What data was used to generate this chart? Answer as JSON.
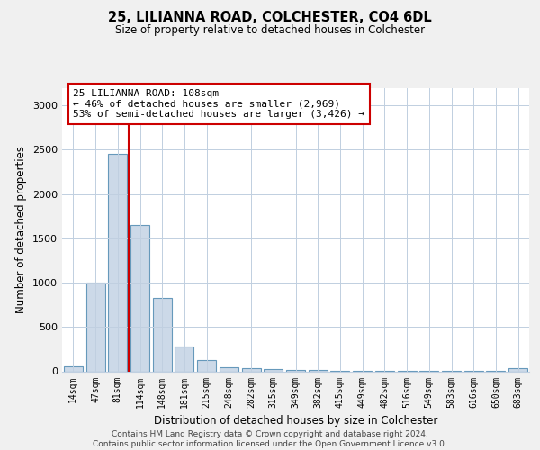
{
  "title1": "25, LILIANNA ROAD, COLCHESTER, CO4 6DL",
  "title2": "Size of property relative to detached houses in Colchester",
  "xlabel": "Distribution of detached houses by size in Colchester",
  "ylabel": "Number of detached properties",
  "bar_labels": [
    "14sqm",
    "47sqm",
    "81sqm",
    "114sqm",
    "148sqm",
    "181sqm",
    "215sqm",
    "248sqm",
    "282sqm",
    "315sqm",
    "349sqm",
    "382sqm",
    "415sqm",
    "449sqm",
    "482sqm",
    "516sqm",
    "549sqm",
    "583sqm",
    "616sqm",
    "650sqm",
    "683sqm"
  ],
  "bar_values": [
    55,
    1000,
    2450,
    1650,
    830,
    280,
    130,
    50,
    40,
    30,
    20,
    15,
    10,
    5,
    5,
    5,
    3,
    2,
    2,
    2,
    40
  ],
  "bar_color": "#ccd9e8",
  "bar_edgecolor": "#6699bb",
  "annotation_text": "25 LILIANNA ROAD: 108sqm\n← 46% of detached houses are smaller (2,969)\n53% of semi-detached houses are larger (3,426) →",
  "annotation_box_color": "#cc0000",
  "ylim": [
    0,
    3200
  ],
  "yticks": [
    0,
    500,
    1000,
    1500,
    2000,
    2500,
    3000
  ],
  "footer_text": "Contains HM Land Registry data © Crown copyright and database right 2024.\nContains public sector information licensed under the Open Government Licence v3.0.",
  "bg_color": "#f0f0f0",
  "plot_bg_color": "#ffffff",
  "grid_color": "#c0cfe0"
}
